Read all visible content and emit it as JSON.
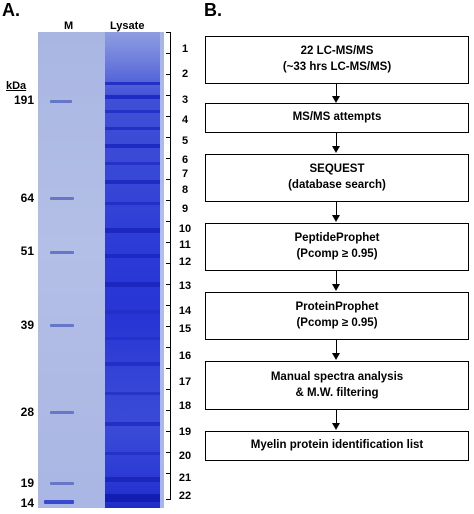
{
  "panel_a": {
    "label": "A.",
    "lanes": {
      "marker": "M",
      "lysate": "Lysate"
    },
    "kda_label": "kDa",
    "mw_markers": [
      "191",
      "64",
      "51",
      "39",
      "28",
      "19",
      "14"
    ],
    "slices": [
      "1",
      "2",
      "3",
      "4",
      "5",
      "6",
      "7",
      "8",
      "9",
      "10",
      "11",
      "12",
      "13",
      "14",
      "15",
      "16",
      "17",
      "18",
      "19",
      "20",
      "21",
      "22"
    ],
    "colors": {
      "gel": "#aab6e3",
      "lysate": "#2a36d6",
      "marker_band": "#6577c6"
    }
  },
  "panel_b": {
    "label": "B.",
    "steps": [
      {
        "line1": "22 LC-MS/MS",
        "line2": "(~33 hrs LC-MS/MS)"
      },
      {
        "line1": "MS/MS attempts",
        "line2": ""
      },
      {
        "line1": "SEQUEST",
        "line2": "(database search)"
      },
      {
        "line1": "PeptideProphet",
        "line2": "(Pcomp ≥ 0.95)"
      },
      {
        "line1": "ProteinProphet",
        "line2": "(Pcomp ≥ 0.95)"
      },
      {
        "line1": "Manual spectra analysis",
        "line2": "& M.W. filtering"
      },
      {
        "line1": "Myelin protein identification list",
        "line2": ""
      }
    ]
  }
}
